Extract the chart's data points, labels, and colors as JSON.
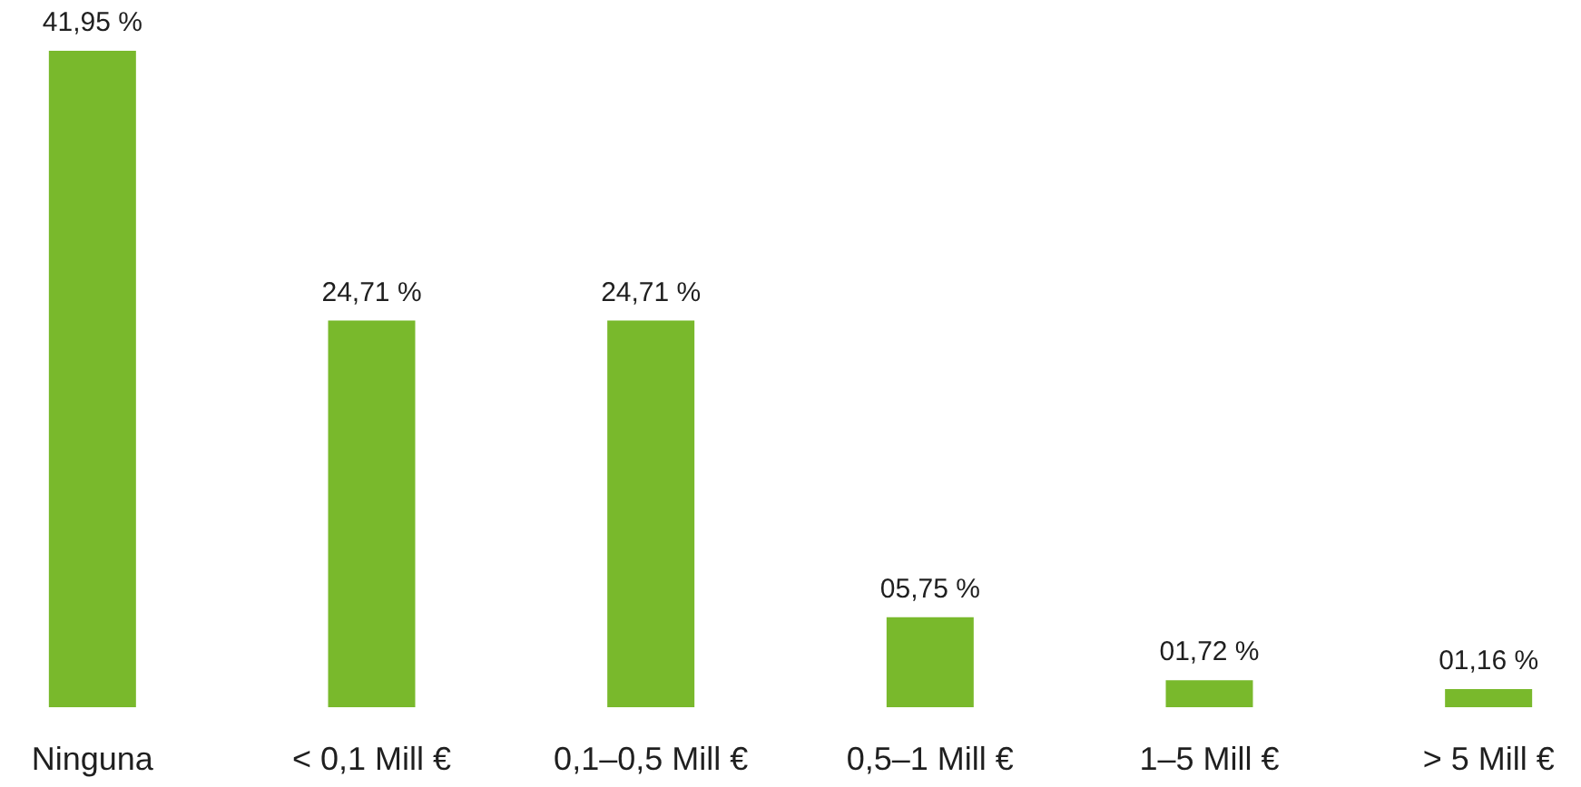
{
  "chart_data": {
    "type": "bar",
    "categories": [
      "Ninguna",
      "< 0,1 Mill €",
      "0,1–0,5 Mill €",
      "0,5–1 Mill €",
      "1–5 Mill €",
      "> 5 Mill €"
    ],
    "values": [
      41.95,
      24.71,
      24.71,
      5.75,
      1.72,
      1.16
    ],
    "value_labels": [
      "41,95 %",
      "24,71 %",
      "24,71 %",
      "05,75 %",
      "01,72 %",
      "01,16 %"
    ],
    "color": "#79b92c",
    "tick_labels": "x"
  }
}
